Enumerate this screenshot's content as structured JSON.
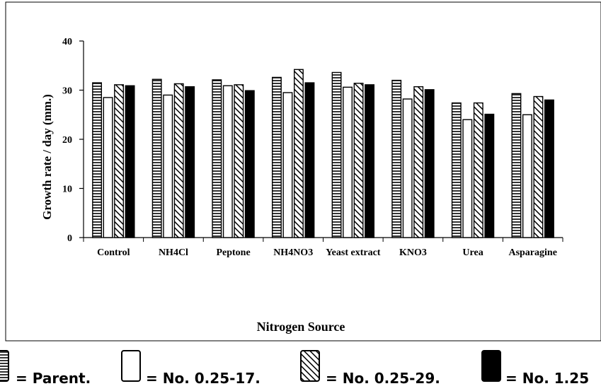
{
  "chart_data": {
    "type": "bar",
    "title": "",
    "xlabel": "Nitrogen Source",
    "ylabel": "Growth rate / day (mm.)",
    "ylim": [
      0,
      40
    ],
    "yticks": [
      "0",
      "10",
      "20",
      "30",
      "40"
    ],
    "grid": false,
    "legend_position": "bottom",
    "categories": [
      "Control",
      "NH4Cl",
      "Peptone",
      "NH4NO3",
      "Yeast extract",
      "KNO3",
      "Urea",
      "Asparagine"
    ],
    "series": [
      {
        "name": "= Parent.",
        "pattern": "horizontal-lines",
        "values": [
          31.5,
          32.2,
          32.1,
          32.6,
          33.6,
          32.0,
          27.4,
          29.3
        ]
      },
      {
        "name": "= No. 0.25-17.",
        "pattern": "white",
        "values": [
          28.5,
          29.0,
          30.9,
          29.5,
          30.6,
          28.2,
          24.0,
          25.0
        ]
      },
      {
        "name": "= No. 0.25-29.",
        "pattern": "diagonal-hatch",
        "values": [
          31.1,
          31.3,
          31.1,
          34.2,
          31.4,
          30.7,
          27.4,
          28.7
        ]
      },
      {
        "name": "= No. 1.25",
        "pattern": "solid-black",
        "values": [
          30.9,
          30.7,
          29.9,
          31.5,
          31.1,
          30.1,
          25.1,
          28.0
        ]
      }
    ]
  }
}
